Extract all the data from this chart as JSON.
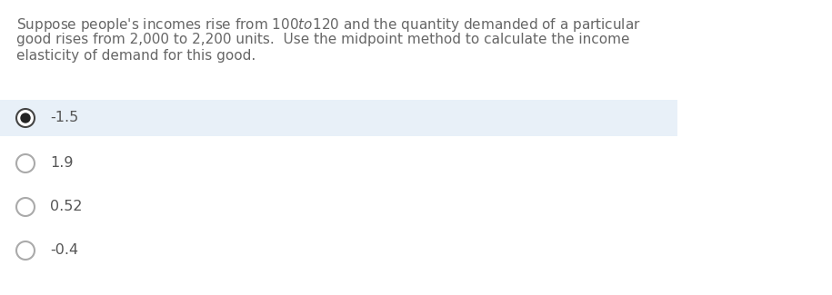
{
  "question_lines": [
    "Suppose people's incomes rise from $100 to $120 and the quantity demanded of a particular",
    "good rises from 2,000 to 2,200 units.  Use the midpoint method to calculate the income",
    "elasticity of demand for this good."
  ],
  "options": [
    "-1.5",
    "1.9",
    "0.52",
    "-0.4"
  ],
  "selected_index": 0,
  "selected_bg": "#e8f0f8",
  "option_bg": "#ffffff",
  "text_color": "#555555",
  "question_color": "#666666",
  "font_size_question": 11.0,
  "font_size_option": 11.5,
  "selected_fill": "#222222",
  "circle_edge_color": "#aaaaaa",
  "selected_edge_color": "#444444"
}
